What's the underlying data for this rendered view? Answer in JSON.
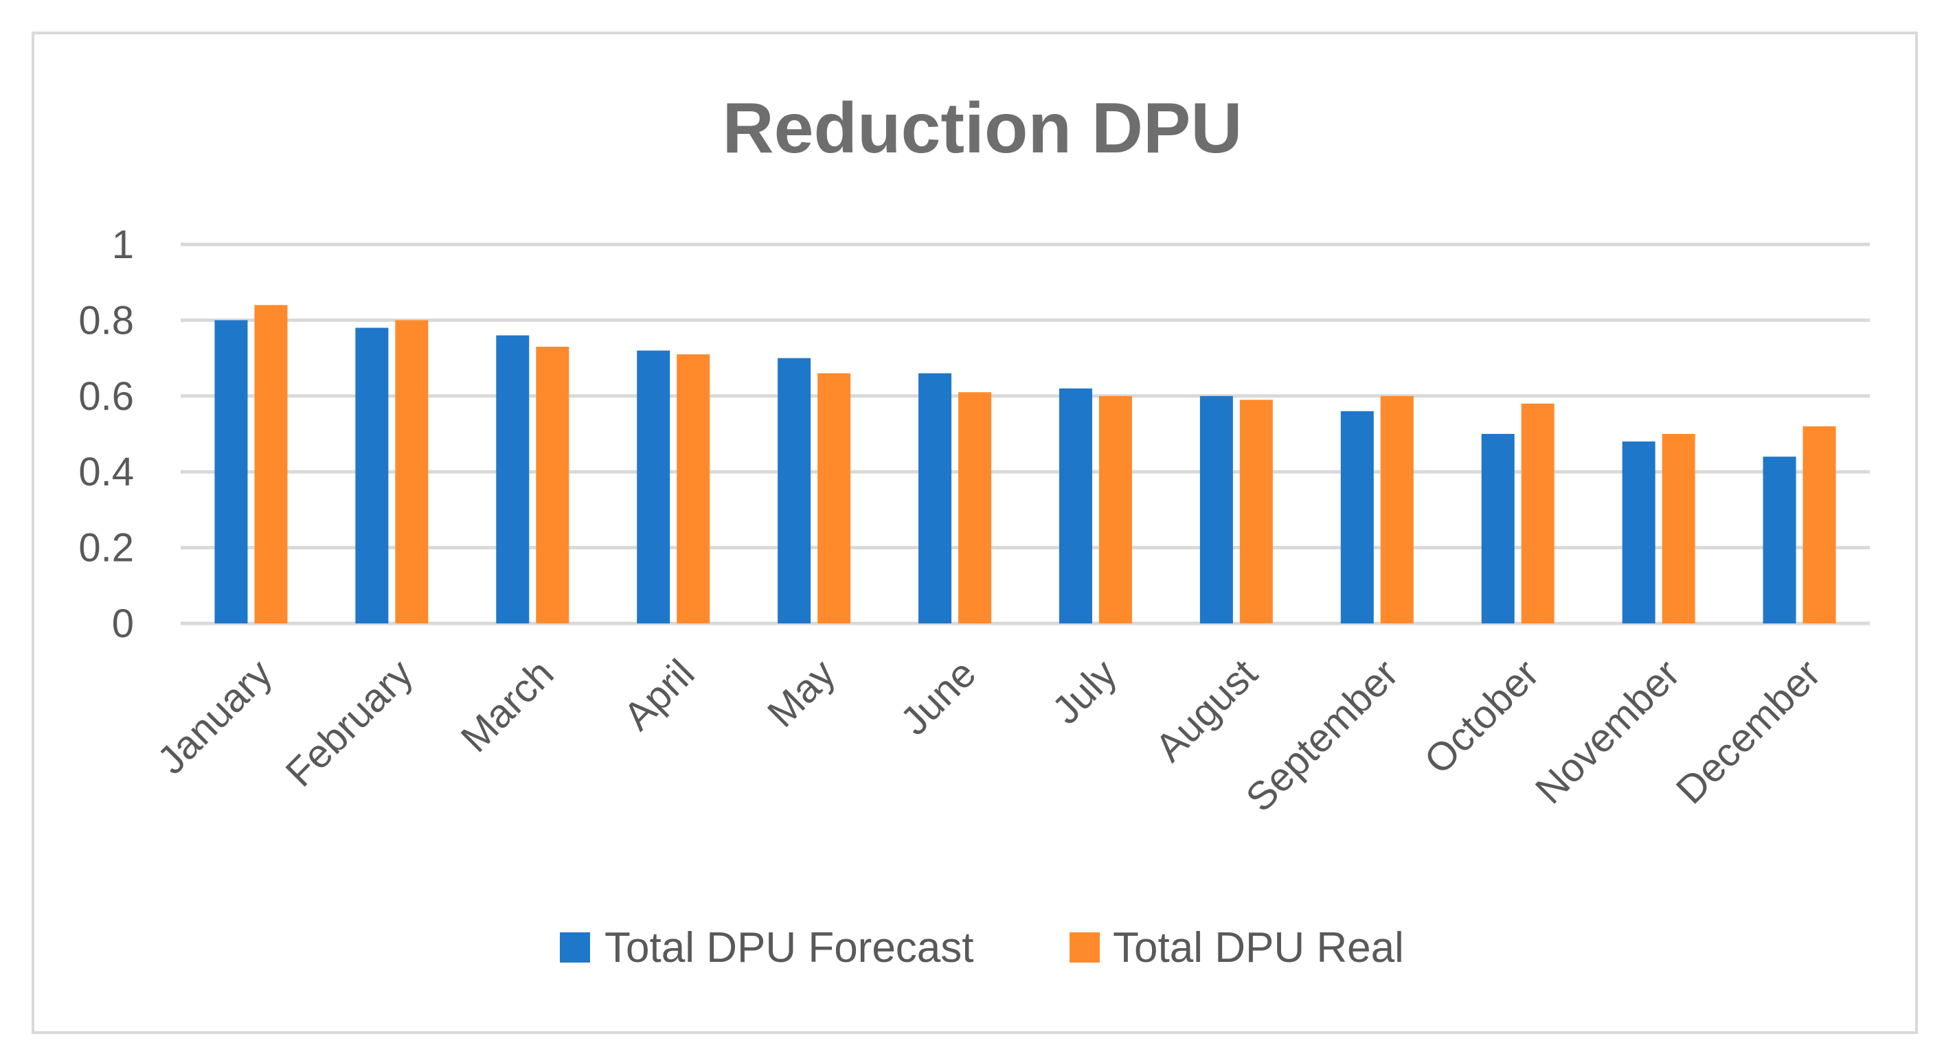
{
  "chart_data": {
    "type": "bar",
    "title": "Reduction DPU",
    "xlabel": "",
    "ylabel": "",
    "ylim": [
      0,
      1
    ],
    "yticks": [
      "0",
      "0.2",
      "0.4",
      "0.6",
      "0.8",
      "1"
    ],
    "categories": [
      "January",
      "February",
      "March",
      "April",
      "May",
      "June",
      "July",
      "August",
      "September",
      "October",
      "November",
      "December"
    ],
    "series": [
      {
        "name": "Total DPU Forecast",
        "color": "#1f77c9",
        "values": [
          0.8,
          0.78,
          0.76,
          0.72,
          0.7,
          0.66,
          0.62,
          0.6,
          0.56,
          0.5,
          0.48,
          0.44
        ]
      },
      {
        "name": "Total DPU Real",
        "color": "#ff8a2b",
        "values": [
          0.84,
          0.8,
          0.73,
          0.71,
          0.66,
          0.61,
          0.6,
          0.59,
          0.6,
          0.58,
          0.5,
          0.52
        ]
      }
    ],
    "grid": true,
    "legend_position": "bottom"
  }
}
